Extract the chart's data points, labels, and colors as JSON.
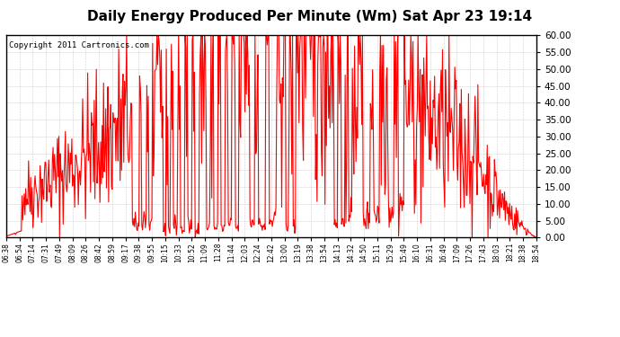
{
  "title": "Daily Energy Produced Per Minute (Wm) Sat Apr 23 19:14",
  "copyright": "Copyright 2011 Cartronics.com",
  "line_color": "#FF0000",
  "bg_color": "#FFFFFF",
  "grid_color": "#C8C8C8",
  "ylim": [
    0,
    60
  ],
  "yticks": [
    0.0,
    5.0,
    10.0,
    15.0,
    20.0,
    25.0,
    30.0,
    35.0,
    40.0,
    45.0,
    50.0,
    55.0,
    60.0
  ],
  "xtick_labels": [
    "06:38",
    "06:54",
    "07:14",
    "07:31",
    "07:49",
    "08:09",
    "08:26",
    "08:42",
    "08:59",
    "09:17",
    "09:38",
    "09:55",
    "10:15",
    "10:33",
    "10:52",
    "11:09",
    "11:28",
    "11:44",
    "12:03",
    "12:24",
    "12:42",
    "13:00",
    "13:19",
    "13:38",
    "13:54",
    "14:13",
    "14:32",
    "14:50",
    "15:11",
    "15:29",
    "15:49",
    "16:10",
    "16:31",
    "16:49",
    "17:09",
    "17:26",
    "17:43",
    "18:03",
    "18:21",
    "18:38",
    "18:54"
  ],
  "title_fontsize": 11,
  "copyright_fontsize": 6.5,
  "ytick_fontsize": 7.5,
  "xtick_fontsize": 5.5,
  "line_width": 0.8,
  "figwidth": 6.9,
  "figheight": 3.75,
  "dpi": 100
}
